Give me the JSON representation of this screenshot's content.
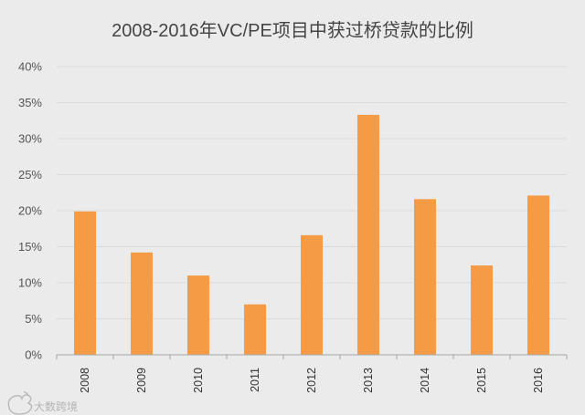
{
  "chart_data": {
    "type": "bar",
    "title": "2008-2016年VC/PE项目中获过桥贷款的比例",
    "categories": [
      "2008",
      "2009",
      "2010",
      "2011",
      "2012",
      "2013",
      "2014",
      "2015",
      "2016"
    ],
    "values": [
      19.9,
      14.2,
      11.0,
      7.0,
      16.6,
      33.3,
      21.6,
      12.4,
      22.1
    ],
    "ylim": [
      0,
      40
    ],
    "yticks": [
      "0%",
      "5%",
      "10%",
      "15%",
      "20%",
      "25%",
      "30%",
      "35%",
      "40%"
    ],
    "xlabel": "",
    "ylabel": "",
    "grid": true,
    "bar_color": "#f59a45",
    "legend": "none"
  },
  "watermark": {
    "text": "大数跨境",
    "icon": "weibo-logo-icon"
  }
}
